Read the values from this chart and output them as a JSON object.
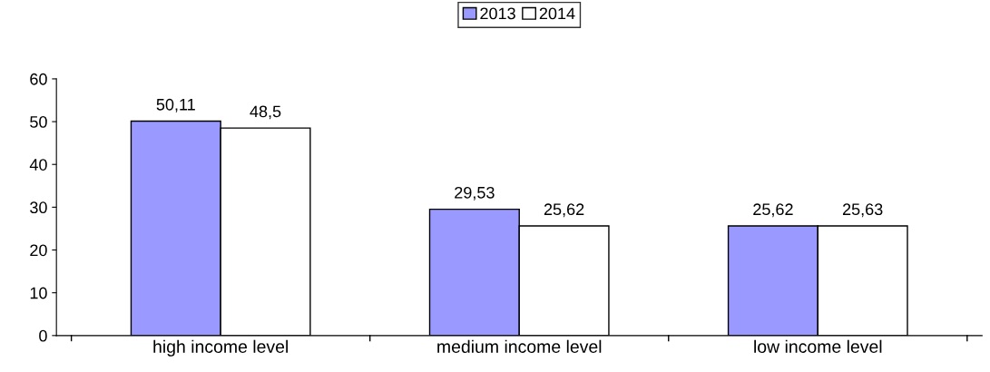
{
  "chart_data": {
    "type": "bar",
    "categories": [
      "high income level",
      "medium income level",
      "low income level"
    ],
    "series": [
      {
        "name": "2013",
        "color": "#9999ff",
        "values": [
          50.11,
          29.53,
          25.62
        ],
        "value_labels": [
          "50,11",
          "29,53",
          "25,62"
        ]
      },
      {
        "name": "2014",
        "color": "#ffffff",
        "values": [
          48.5,
          25.62,
          25.63
        ],
        "value_labels": [
          "48,5",
          "25,62",
          "25,63"
        ]
      }
    ],
    "ylim": [
      0,
      60
    ],
    "yticks": [
      0,
      10,
      20,
      30,
      40,
      50,
      60
    ],
    "grid": false,
    "legend": "top"
  }
}
